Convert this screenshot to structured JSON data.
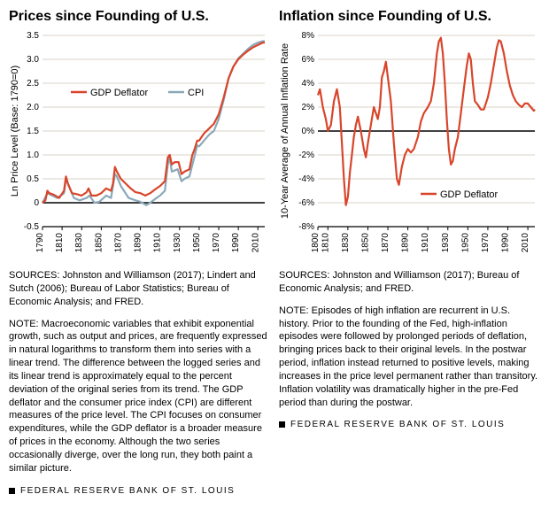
{
  "left": {
    "title": "Prices since Founding of U.S.",
    "y_label": "Ln Price Level (Base: 1790=0)",
    "ylim": [
      -0.5,
      3.5
    ],
    "ytick_step": 0.5,
    "xlim": [
      1790,
      2017
    ],
    "xticks": [
      1790,
      1810,
      1830,
      1850,
      1870,
      1890,
      1910,
      1930,
      1950,
      1970,
      1990,
      2010
    ],
    "grid_color": "#d9d3c7",
    "axis_color": "#000000",
    "background": "#ffffff",
    "series": [
      {
        "name": "GDP Deflator",
        "color": "#d9452b",
        "width": 2.2,
        "points": [
          [
            1790,
            0.0
          ],
          [
            1793,
            0.05
          ],
          [
            1795,
            0.25
          ],
          [
            1797,
            0.2
          ],
          [
            1800,
            0.18
          ],
          [
            1803,
            0.15
          ],
          [
            1807,
            0.1
          ],
          [
            1812,
            0.25
          ],
          [
            1814,
            0.55
          ],
          [
            1816,
            0.4
          ],
          [
            1820,
            0.2
          ],
          [
            1825,
            0.18
          ],
          [
            1830,
            0.15
          ],
          [
            1835,
            0.22
          ],
          [
            1837,
            0.3
          ],
          [
            1840,
            0.15
          ],
          [
            1845,
            0.15
          ],
          [
            1850,
            0.2
          ],
          [
            1855,
            0.3
          ],
          [
            1860,
            0.25
          ],
          [
            1862,
            0.4
          ],
          [
            1864,
            0.75
          ],
          [
            1866,
            0.65
          ],
          [
            1870,
            0.5
          ],
          [
            1875,
            0.4
          ],
          [
            1880,
            0.3
          ],
          [
            1885,
            0.22
          ],
          [
            1890,
            0.2
          ],
          [
            1895,
            0.15
          ],
          [
            1900,
            0.2
          ],
          [
            1905,
            0.28
          ],
          [
            1910,
            0.35
          ],
          [
            1915,
            0.45
          ],
          [
            1918,
            0.95
          ],
          [
            1920,
            1.0
          ],
          [
            1922,
            0.8
          ],
          [
            1925,
            0.85
          ],
          [
            1929,
            0.85
          ],
          [
            1932,
            0.6
          ],
          [
            1935,
            0.65
          ],
          [
            1940,
            0.7
          ],
          [
            1943,
            1.0
          ],
          [
            1945,
            1.1
          ],
          [
            1948,
            1.3
          ],
          [
            1950,
            1.3
          ],
          [
            1955,
            1.45
          ],
          [
            1960,
            1.55
          ],
          [
            1965,
            1.65
          ],
          [
            1970,
            1.85
          ],
          [
            1975,
            2.2
          ],
          [
            1980,
            2.6
          ],
          [
            1985,
            2.85
          ],
          [
            1990,
            3.0
          ],
          [
            1995,
            3.1
          ],
          [
            2000,
            3.18
          ],
          [
            2005,
            3.25
          ],
          [
            2010,
            3.3
          ],
          [
            2015,
            3.35
          ],
          [
            2017,
            3.35
          ]
        ]
      },
      {
        "name": "CPI",
        "color": "#8aa9b8",
        "width": 2.2,
        "points": [
          [
            1790,
            0.0
          ],
          [
            1795,
            0.2
          ],
          [
            1800,
            0.15
          ],
          [
            1805,
            0.1
          ],
          [
            1812,
            0.2
          ],
          [
            1814,
            0.5
          ],
          [
            1818,
            0.3
          ],
          [
            1822,
            0.1
          ],
          [
            1828,
            0.05
          ],
          [
            1835,
            0.1
          ],
          [
            1838,
            0.15
          ],
          [
            1843,
            0.0
          ],
          [
            1848,
            0.02
          ],
          [
            1855,
            0.15
          ],
          [
            1860,
            0.1
          ],
          [
            1864,
            0.6
          ],
          [
            1866,
            0.55
          ],
          [
            1870,
            0.35
          ],
          [
            1878,
            0.1
          ],
          [
            1885,
            0.05
          ],
          [
            1890,
            0.02
          ],
          [
            1896,
            -0.05
          ],
          [
            1900,
            0.0
          ],
          [
            1905,
            0.08
          ],
          [
            1910,
            0.15
          ],
          [
            1915,
            0.25
          ],
          [
            1918,
            0.8
          ],
          [
            1920,
            0.95
          ],
          [
            1922,
            0.65
          ],
          [
            1928,
            0.7
          ],
          [
            1932,
            0.45
          ],
          [
            1935,
            0.5
          ],
          [
            1940,
            0.55
          ],
          [
            1945,
            0.95
          ],
          [
            1948,
            1.2
          ],
          [
            1950,
            1.18
          ],
          [
            1955,
            1.3
          ],
          [
            1960,
            1.42
          ],
          [
            1965,
            1.5
          ],
          [
            1970,
            1.75
          ],
          [
            1975,
            2.15
          ],
          [
            1980,
            2.6
          ],
          [
            1985,
            2.85
          ],
          [
            1990,
            3.02
          ],
          [
            1995,
            3.12
          ],
          [
            2000,
            3.22
          ],
          [
            2005,
            3.3
          ],
          [
            2010,
            3.35
          ],
          [
            2015,
            3.38
          ],
          [
            2017,
            3.38
          ]
        ]
      }
    ],
    "legend": {
      "items": [
        "GDP Deflator",
        "CPI"
      ],
      "colors": [
        "#d9452b",
        "#8aa9b8"
      ]
    },
    "sources": "SOURCES: Johnston and Williamson (2017); Lindert and Sutch (2006); Bureau of Labor Statistics; Bureau of Economic Analysis; and FRED.",
    "note": "NOTE: Macroeconomic variables that exhibit exponential growth, such as output and prices, are frequently expressed in natural logarithms to transform them into series with a linear trend. The difference between the logged series and its linear trend is approximately equal to the percent deviation of the original series from its trend. The GDP deflator and the consumer price index (CPI) are different measures of the price level. The CPI focuses on consumer expenditures, while the GDP deflator is a broader measure of prices in the economy. Although the two series occasionally diverge, over the long run, they both paint a similar picture.",
    "footer": "FEDERAL RESERVE BANK OF ST. LOUIS"
  },
  "right": {
    "title": "Inflation since Founding of U.S.",
    "y_label": "10-Year Average of Annual Inflation Rate",
    "ylim": [
      -8,
      8
    ],
    "ytick_step": 2,
    "xlim": [
      1800,
      2017
    ],
    "xticks": [
      1800,
      1810,
      1830,
      1850,
      1870,
      1890,
      1910,
      1930,
      1950,
      1970,
      1990,
      2010
    ],
    "grid_color": "#d9d3c7",
    "axis_color": "#000000",
    "background": "#ffffff",
    "series": [
      {
        "name": "GDP Deflator",
        "color": "#d9452b",
        "width": 2.2,
        "points": [
          [
            1800,
            3.0
          ],
          [
            1802,
            3.5
          ],
          [
            1805,
            2.0
          ],
          [
            1808,
            1.0
          ],
          [
            1810,
            0.0
          ],
          [
            1813,
            0.5
          ],
          [
            1816,
            2.5
          ],
          [
            1819,
            3.5
          ],
          [
            1822,
            2.0
          ],
          [
            1824,
            -1.0
          ],
          [
            1826,
            -4.0
          ],
          [
            1828,
            -6.2
          ],
          [
            1830,
            -5.5
          ],
          [
            1832,
            -3.5
          ],
          [
            1834,
            -2.0
          ],
          [
            1836,
            -0.5
          ],
          [
            1838,
            0.5
          ],
          [
            1840,
            1.2
          ],
          [
            1843,
            0.0
          ],
          [
            1846,
            -1.5
          ],
          [
            1848,
            -2.2
          ],
          [
            1850,
            -1.0
          ],
          [
            1853,
            0.5
          ],
          [
            1856,
            2.0
          ],
          [
            1860,
            1.0
          ],
          [
            1862,
            2.0
          ],
          [
            1864,
            4.5
          ],
          [
            1866,
            5.0
          ],
          [
            1868,
            5.8
          ],
          [
            1870,
            4.5
          ],
          [
            1873,
            2.5
          ],
          [
            1876,
            -1.0
          ],
          [
            1879,
            -4.0
          ],
          [
            1881,
            -4.5
          ],
          [
            1884,
            -3.0
          ],
          [
            1887,
            -2.0
          ],
          [
            1890,
            -1.5
          ],
          [
            1893,
            -1.8
          ],
          [
            1896,
            -1.5
          ],
          [
            1900,
            -0.5
          ],
          [
            1903,
            0.8
          ],
          [
            1906,
            1.5
          ],
          [
            1910,
            2.0
          ],
          [
            1913,
            2.5
          ],
          [
            1916,
            4.0
          ],
          [
            1919,
            6.5
          ],
          [
            1921,
            7.5
          ],
          [
            1923,
            7.8
          ],
          [
            1925,
            6.5
          ],
          [
            1927,
            4.0
          ],
          [
            1929,
            1.0
          ],
          [
            1931,
            -1.5
          ],
          [
            1933,
            -2.8
          ],
          [
            1935,
            -2.5
          ],
          [
            1937,
            -1.5
          ],
          [
            1940,
            -0.5
          ],
          [
            1943,
            1.5
          ],
          [
            1946,
            3.5
          ],
          [
            1949,
            5.5
          ],
          [
            1951,
            6.5
          ],
          [
            1953,
            6.0
          ],
          [
            1955,
            4.0
          ],
          [
            1957,
            2.5
          ],
          [
            1960,
            2.2
          ],
          [
            1963,
            1.8
          ],
          [
            1966,
            1.8
          ],
          [
            1970,
            2.8
          ],
          [
            1973,
            4.0
          ],
          [
            1976,
            5.5
          ],
          [
            1979,
            7.0
          ],
          [
            1981,
            7.6
          ],
          [
            1983,
            7.5
          ],
          [
            1986,
            6.5
          ],
          [
            1989,
            5.0
          ],
          [
            1992,
            3.8
          ],
          [
            1995,
            3.0
          ],
          [
            1998,
            2.5
          ],
          [
            2001,
            2.2
          ],
          [
            2004,
            2.0
          ],
          [
            2007,
            2.3
          ],
          [
            2010,
            2.3
          ],
          [
            2013,
            2.0
          ],
          [
            2016,
            1.7
          ],
          [
            2017,
            1.8
          ]
        ]
      }
    ],
    "legend": {
      "items": [
        "GDP Deflator"
      ],
      "colors": [
        "#d9452b"
      ]
    },
    "sources": "SOURCES: Johnston and Williamson (2017); Bureau of Economic Analysis; and FRED.",
    "note": "NOTE: Episodes of high inflation are recurrent in U.S. history. Prior to the founding of the Fed, high-inflation episodes were followed by prolonged periods of deflation, bringing prices back to their original levels. In the postwar period, inflation instead returned to positive levels, making increases in the price level permanent rather than transitory. Inflation volatility was dramatically higher in the pre-Fed period than during the postwar.",
    "footer": "FEDERAL RESERVE BANK OF ST. LOUIS"
  }
}
